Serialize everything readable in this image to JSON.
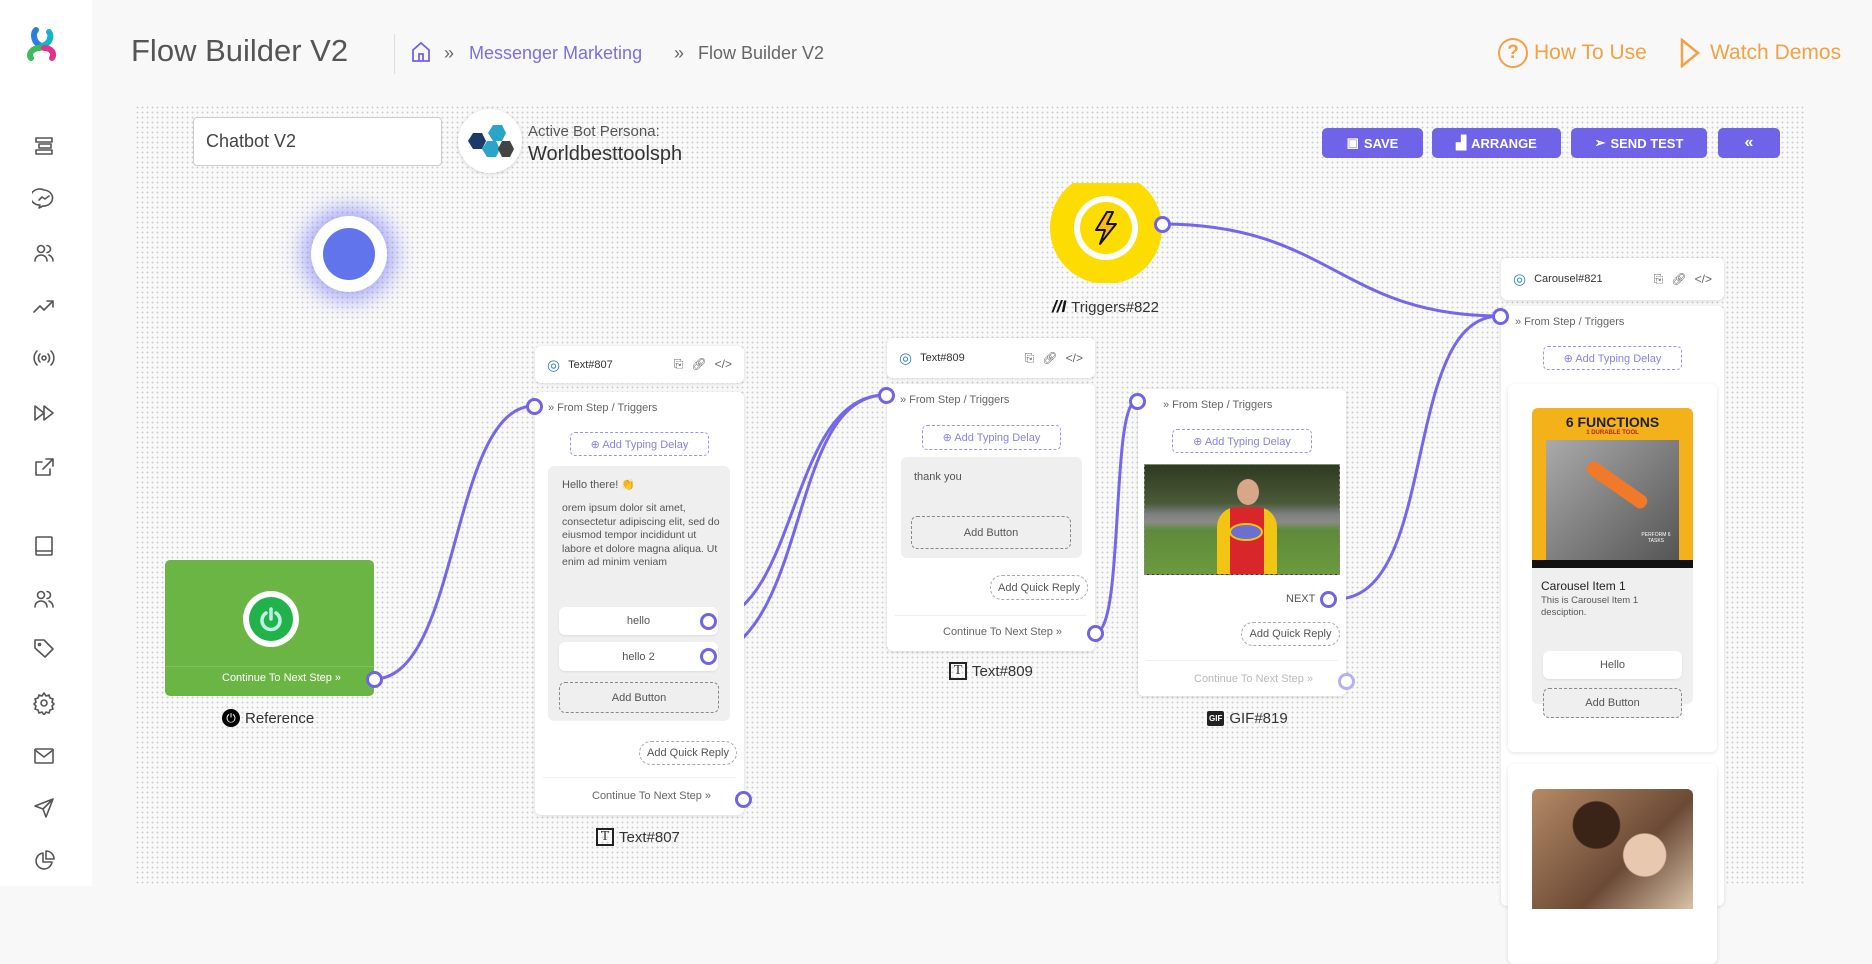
{
  "header": {
    "title": "Flow Builder V2",
    "breadcrumb": {
      "separator": "»",
      "parent": "Messenger Marketing",
      "current": "Flow Builder V2"
    },
    "how_to_use": "How To Use",
    "watch_demos": "Watch Demos"
  },
  "sidebar": {
    "items": [
      "logo",
      "menu-toggle",
      "messenger",
      "subscribers",
      "analytics",
      "broadcast",
      "sequence",
      "external-link",
      "book",
      "team",
      "tags",
      "settings",
      "email",
      "send",
      "reports"
    ]
  },
  "toolbar": {
    "flow_name": "Chatbot V2",
    "persona_label": "Active Bot Persona:",
    "persona_name": "Worldbesttoolsph",
    "save": "SAVE",
    "arrange": "ARRANGE",
    "send_test": "SEND TEST",
    "collapse": "«"
  },
  "nodes": {
    "reference": {
      "continue": "Continue To Next Step »",
      "label": "Reference"
    },
    "text807": {
      "title": "Text#807",
      "from": "» From Step / Triggers",
      "delay": "⊕ Add Typing Delay",
      "greeting": "Hello there! 👏",
      "body": "orem ipsum dolor sit amet, consectetur adipiscing elit, sed do eiusmod tempor incididunt ut labore et dolore magna aliqua. Ut enim ad minim veniam",
      "buttons": [
        "hello",
        "hello 2"
      ],
      "add_button": "Add Button",
      "quick_reply": "Add Quick Reply",
      "continue": "Continue To Next Step »",
      "label": "Text#807"
    },
    "text809": {
      "title": "Text#809",
      "from": "» From Step / Triggers",
      "delay": "⊕ Add Typing Delay",
      "message": "thank you",
      "add_button": "Add Button",
      "quick_reply": "Add Quick Reply",
      "continue": "Continue To Next Step »",
      "label": "Text#809"
    },
    "gif819": {
      "from": "» From Step / Triggers",
      "delay": "⊕ Add Typing Delay",
      "next": "NEXT",
      "quick_reply": "Add Quick Reply",
      "continue": "Continue To Next Step »",
      "label": "GIF#819"
    },
    "trigger822": {
      "label": "Triggers#822"
    },
    "carousel821": {
      "title": "Carousel#821",
      "from": "» From Step / Triggers",
      "delay": "⊕ Add Typing Delay",
      "item_title": "Carousel Item 1",
      "item_desc": "This is Carousel Item 1 desciption.",
      "item_button": "Hello",
      "add_button": "Add Button",
      "image_text": [
        "6 FUNCTIONS",
        "1 DURABLE TOOL",
        "PERFORM 6 TASKS"
      ]
    }
  },
  "colors": {
    "accent": "#6f64e8",
    "orange": "#f5a142",
    "start_green": "#6bb544",
    "trigger_yellow": "#fddc02"
  }
}
